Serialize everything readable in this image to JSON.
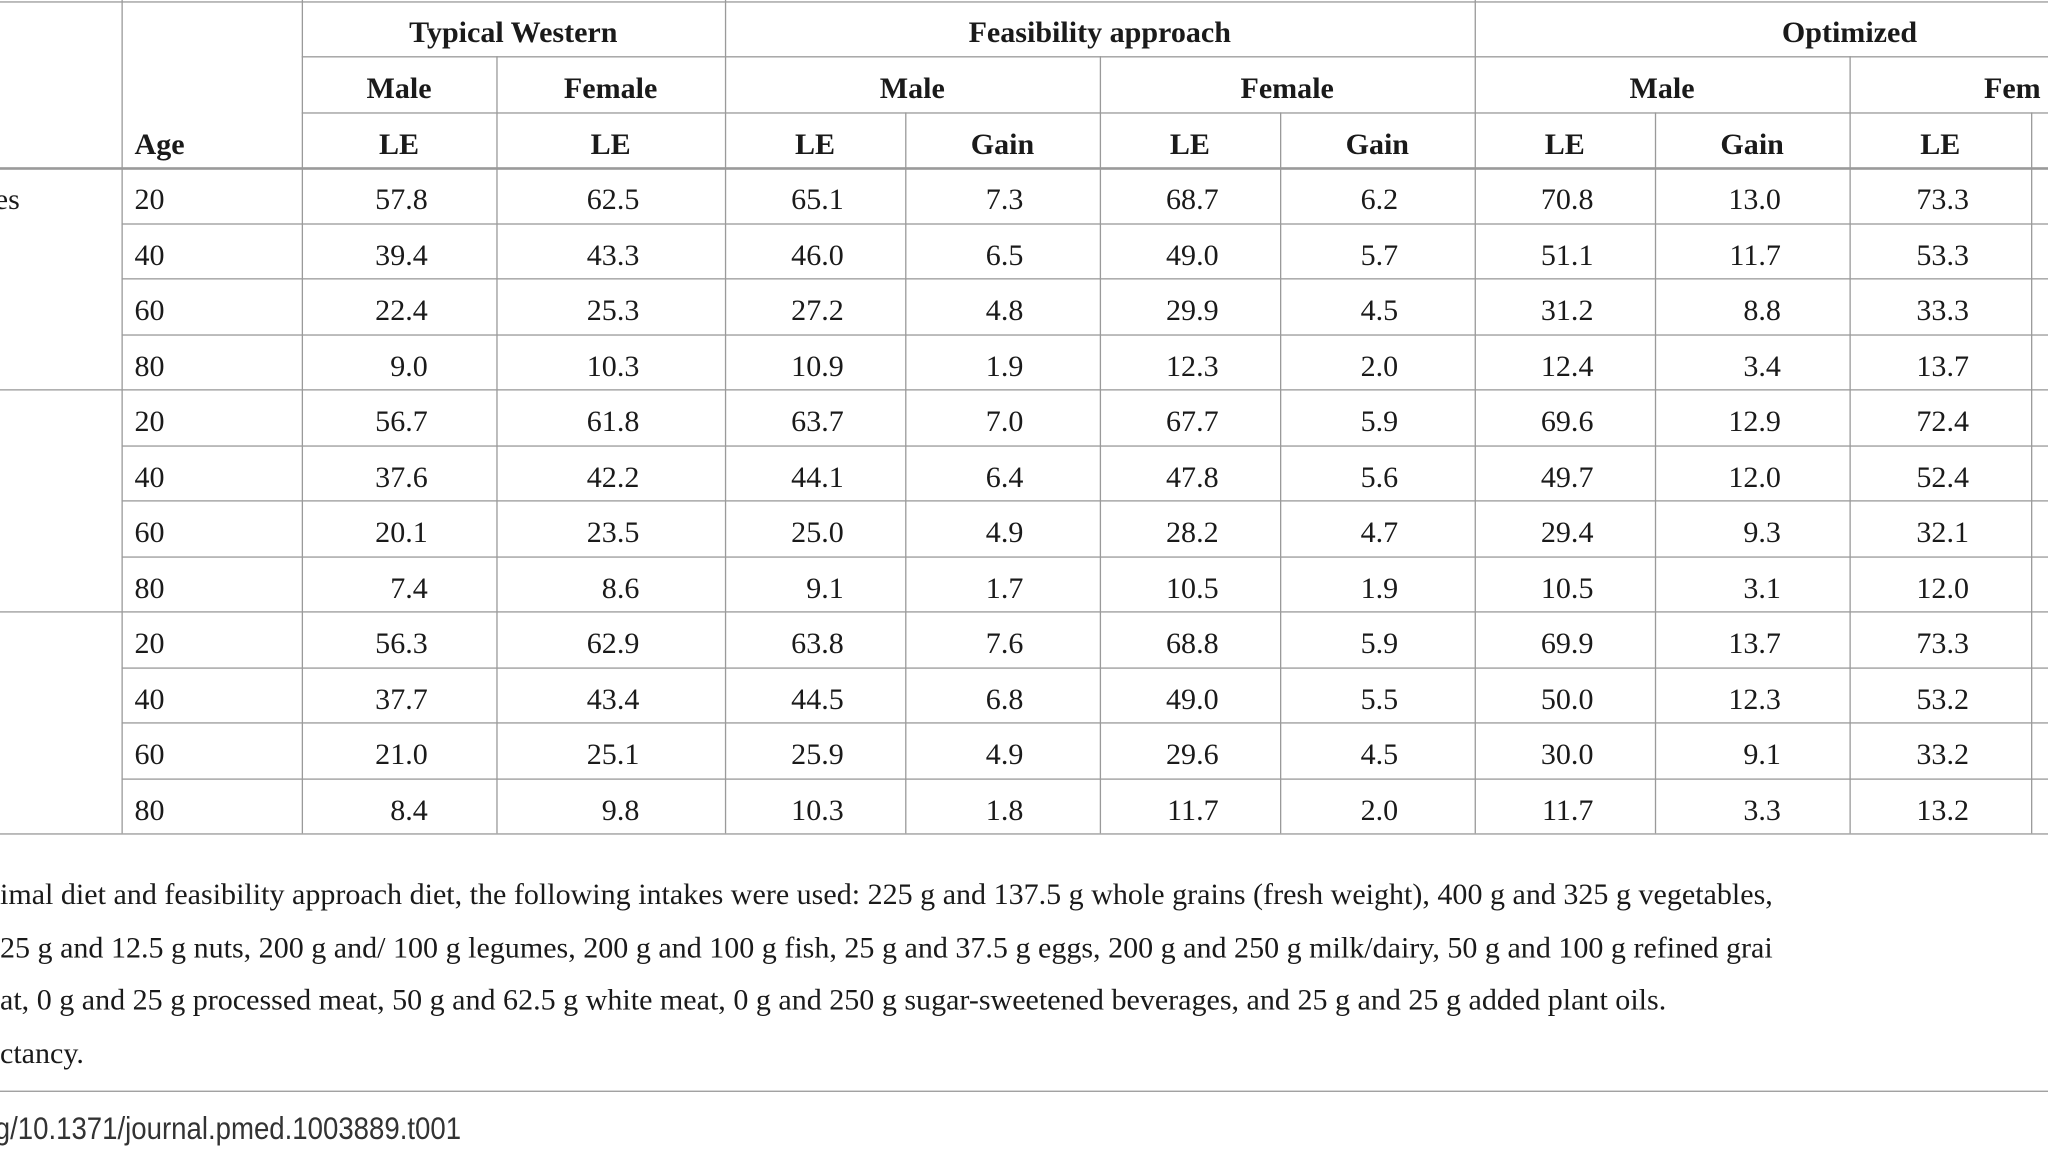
{
  "header": {
    "groups": [
      "Typical Western",
      "Feasibility approach",
      "Optimized"
    ],
    "sexes": [
      "Male",
      "Female",
      "Male",
      "Female",
      "Male",
      "Fem"
    ],
    "columns": [
      "Age",
      "LE",
      "LE",
      "LE",
      "Gain",
      "LE",
      "Gain",
      "LE",
      "Gain",
      "LE"
    ]
  },
  "table": {
    "groups": [
      {
        "label": "es",
        "rows": [
          [
            "20",
            "57.8",
            "62.5",
            "65.1",
            "7.3",
            "68.7",
            "6.2",
            "70.8",
            "13.0",
            "73.3"
          ],
          [
            "40",
            "39.4",
            "43.3",
            "46.0",
            "6.5",
            "49.0",
            "5.7",
            "51.1",
            "11.7",
            "53.3"
          ],
          [
            "60",
            "22.4",
            "25.3",
            "27.2",
            "4.8",
            "29.9",
            "4.5",
            "31.2",
            "8.8",
            "33.3"
          ],
          [
            "80",
            "9.0",
            "10.3",
            "10.9",
            "1.9",
            "12.3",
            "2.0",
            "12.4",
            "3.4",
            "13.7"
          ]
        ]
      },
      {
        "rows": [
          [
            "20",
            "56.7",
            "61.8",
            "63.7",
            "7.0",
            "67.7",
            "5.9",
            "69.6",
            "12.9",
            "72.4"
          ],
          [
            "40",
            "37.6",
            "42.2",
            "44.1",
            "6.4",
            "47.8",
            "5.6",
            "49.7",
            "12.0",
            "52.4"
          ],
          [
            "60",
            "20.1",
            "23.5",
            "25.0",
            "4.9",
            "28.2",
            "4.7",
            "29.4",
            "9.3",
            "32.1"
          ],
          [
            "80",
            "7.4",
            "8.6",
            "9.1",
            "1.7",
            "10.5",
            "1.9",
            "10.5",
            "3.1",
            "12.0"
          ]
        ]
      },
      {
        "rows": [
          [
            "20",
            "56.3",
            "62.9",
            "63.8",
            "7.6",
            "68.8",
            "5.9",
            "69.9",
            "13.7",
            "73.3"
          ],
          [
            "40",
            "37.7",
            "43.4",
            "44.5",
            "6.8",
            "49.0",
            "5.5",
            "50.0",
            "12.3",
            "53.2"
          ],
          [
            "60",
            "21.0",
            "25.1",
            "25.9",
            "4.9",
            "29.6",
            "4.5",
            "30.0",
            "9.1",
            "33.2"
          ],
          [
            "80",
            "8.4",
            "9.8",
            "10.3",
            "1.8",
            "11.7",
            "2.0",
            "11.7",
            "3.3",
            "13.2"
          ]
        ]
      }
    ]
  },
  "footnotes": [
    "imal diet and feasibility approach diet, the following intakes were used: 225 g and 137.5 g whole grains (fresh weight), 400 g and 325 g vegetables,",
    "25 g and 12.5 g nuts, 200 g and/ 100 g legumes, 200 g and 100 g fish, 25 g and 37.5 g eggs, 200 g and 250 g milk/dairy, 50 g and 100 g refined grai",
    "at, 0 g and 25 g processed meat, 50 g and 62.5 g white meat, 0 g and 250 g sugar-sweetened beverages, and 25 g and 25 g added plant oils.",
    "ctancy."
  ],
  "doi": "g/10.1371/journal.pmed.1003889.t001"
}
